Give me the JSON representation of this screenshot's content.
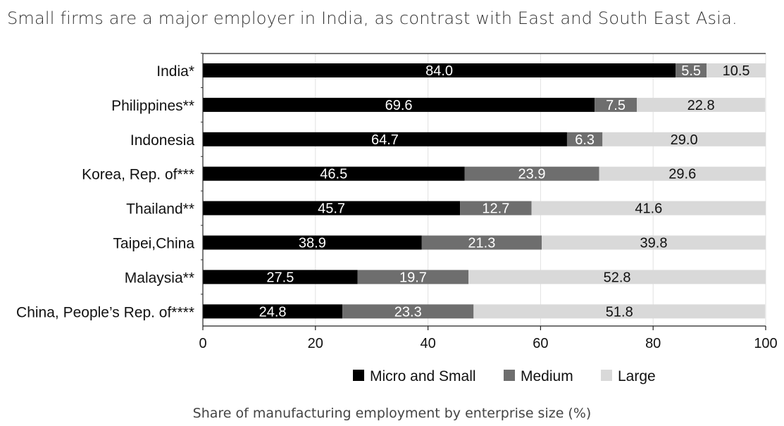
{
  "page": {
    "title": "Small firms are a major employer in India, as contrast with East and South East Asia.",
    "caption": "Share of manufacturing employment by enterprise size (%)"
  },
  "chart_data": {
    "type": "bar",
    "orientation": "horizontal",
    "stacked": true,
    "categories": [
      "India*",
      "Philippines**",
      "Indonesia",
      "Korea, Rep. of***",
      "Thailand**",
      "Taipei,China",
      "Malaysia**",
      "China, People’s Rep. of****"
    ],
    "series": [
      {
        "name": "Micro and Small",
        "color": "#000000",
        "label_color": "#ffffff",
        "values": [
          84.0,
          69.6,
          64.7,
          46.5,
          45.7,
          38.9,
          27.5,
          24.8
        ],
        "labels": [
          "84.0",
          "69.6",
          "64.7",
          "46.5",
          "45.7",
          "38.9",
          "27.5",
          "24.8"
        ]
      },
      {
        "name": "Medium",
        "color": "#6e6e6e",
        "label_color": "#ffffff",
        "values": [
          5.5,
          7.5,
          6.3,
          23.9,
          12.7,
          21.3,
          19.7,
          23.3
        ],
        "labels": [
          "5.5",
          "7.5",
          "6.3",
          "23.9",
          "12.7",
          "21.3",
          "19.7",
          "23.3"
        ]
      },
      {
        "name": "Large",
        "color": "#d9d9d9",
        "label_color": "#111111",
        "values": [
          10.5,
          22.8,
          29.0,
          29.6,
          41.6,
          39.8,
          52.8,
          51.8
        ],
        "labels": [
          "10.5",
          "22.8",
          "29.0",
          "29.6",
          "41.6",
          "39.8",
          "52.8",
          "51.8"
        ]
      }
    ],
    "xlim": [
      0,
      100
    ],
    "x_ticks": [
      0,
      20,
      40,
      60,
      80,
      100
    ],
    "x_tick_labels": [
      "0",
      "20",
      "40",
      "60",
      "80",
      "100"
    ],
    "grid": "vertical",
    "legend_position": "bottom-right"
  }
}
